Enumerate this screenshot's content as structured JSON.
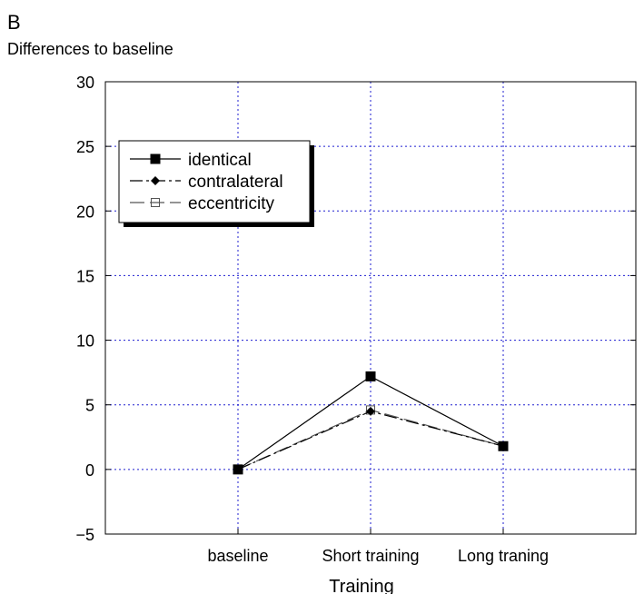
{
  "panel_label": "B",
  "chart_data": {
    "type": "line",
    "title": "Differences to baseline",
    "xlabel": "Training",
    "ylabel": "",
    "categories": [
      "baseline",
      "Short training",
      "Long traning"
    ],
    "ylim": [
      -5,
      30
    ],
    "yticks": [
      -5,
      0,
      5,
      10,
      15,
      20,
      25,
      30
    ],
    "ytick_labels": [
      "−5",
      "0",
      "5",
      "10",
      "15",
      "20",
      "25",
      "30"
    ],
    "grid": true,
    "legend_position": "top-left",
    "series": [
      {
        "name": "identical",
        "values": [
          0,
          7.2,
          1.8
        ],
        "marker": "filled-square",
        "line": "solid",
        "color": "#000000"
      },
      {
        "name": "contralateral",
        "values": [
          0,
          4.5,
          1.8
        ],
        "marker": "filled-diamond",
        "line": "dash-dot",
        "color": "#000000"
      },
      {
        "name": "eccentricity",
        "values": [
          0,
          4.6,
          1.8
        ],
        "marker": "open-square",
        "line": "long-dash",
        "color": "#555555"
      }
    ]
  }
}
